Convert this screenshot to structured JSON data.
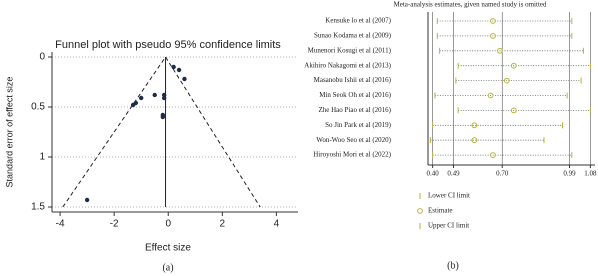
{
  "chart_data": [
    {
      "type": "scatter",
      "title": "Funnel plot with pseudo 95% confidence limits",
      "xlabel": "Effect size",
      "ylabel": "Standard error of effect size",
      "caption": "(a)",
      "x": [
        0.2,
        0.4,
        0.6,
        -0.5,
        -0.15,
        -0.15,
        -1.0,
        -1.2,
        -1.3,
        -0.2,
        -0.2,
        -3.0
      ],
      "values": [
        0.1,
        0.13,
        0.22,
        0.38,
        0.38,
        0.41,
        0.41,
        0.46,
        0.48,
        0.58,
        0.6,
        1.43
      ],
      "color": "#1c2b4a",
      "lines": [
        {
          "x": [
            -3.9,
            -0.1,
            3.4
          ],
          "values": [
            1.5,
            0,
            1.5
          ],
          "style": "dashed"
        },
        {
          "x": [
            -0.1,
            -0.1
          ],
          "values": [
            0,
            1.5
          ],
          "style": "solid"
        }
      ],
      "xlim": [
        -4.3,
        4.8
      ],
      "xticks": [
        -4,
        -2,
        0,
        2,
        4
      ],
      "ylim": [
        -0.05,
        1.55
      ],
      "yticks": [
        0,
        0.5,
        1,
        1.5
      ],
      "y_inverted": true,
      "grid": true
    },
    {
      "type": "forest",
      "title": "Meta-analysis estimates, given named study is omitted",
      "caption": "(b)",
      "categories": [
        "Kensuke lo et al (2007)",
        "Sunao Kodama et al (2009)",
        "Munenori Kosugi et al (2011)",
        "Akihiro Nakagomi et al (2013)",
        "Masanobu Ishii et al (2016)",
        "Min Seok Oh et al (2016)",
        "Zhe Hao Piao et al (2016)",
        "So Jin Park et al (2019)",
        "Won-Woo Seo et al (2020)",
        "Hiroyoshi Mori et al (2022)"
      ],
      "series": [
        {
          "name": "Lower CI limit",
          "color": "#b5b53a",
          "marker": "bar",
          "values": [
            0.42,
            0.42,
            0.43,
            0.51,
            0.5,
            0.41,
            0.51,
            0.4,
            0.39,
            0.4
          ]
        },
        {
          "name": "Estimate",
          "color": "#b5b53a",
          "marker": "circle",
          "values": [
            0.66,
            0.66,
            0.69,
            0.75,
            0.72,
            0.65,
            0.75,
            0.58,
            0.58,
            0.66
          ]
        },
        {
          "name": "Upper CI limit",
          "color": "#b5b53a",
          "marker": "bar",
          "values": [
            1.0,
            1.0,
            1.05,
            1.08,
            1.04,
            0.98,
            1.08,
            0.96,
            0.88,
            1.0
          ]
        }
      ],
      "xlim": [
        0.38,
        1.1
      ],
      "xticks": [
        {
          "value": 0.4,
          "label": "0.40"
        },
        {
          "value": 0.49,
          "label": "0.49"
        },
        {
          "value": 0.7,
          "label": "0.70"
        },
        {
          "value": 0.99,
          "label": "0.99"
        },
        1.08
      ],
      "grid": true
    }
  ]
}
